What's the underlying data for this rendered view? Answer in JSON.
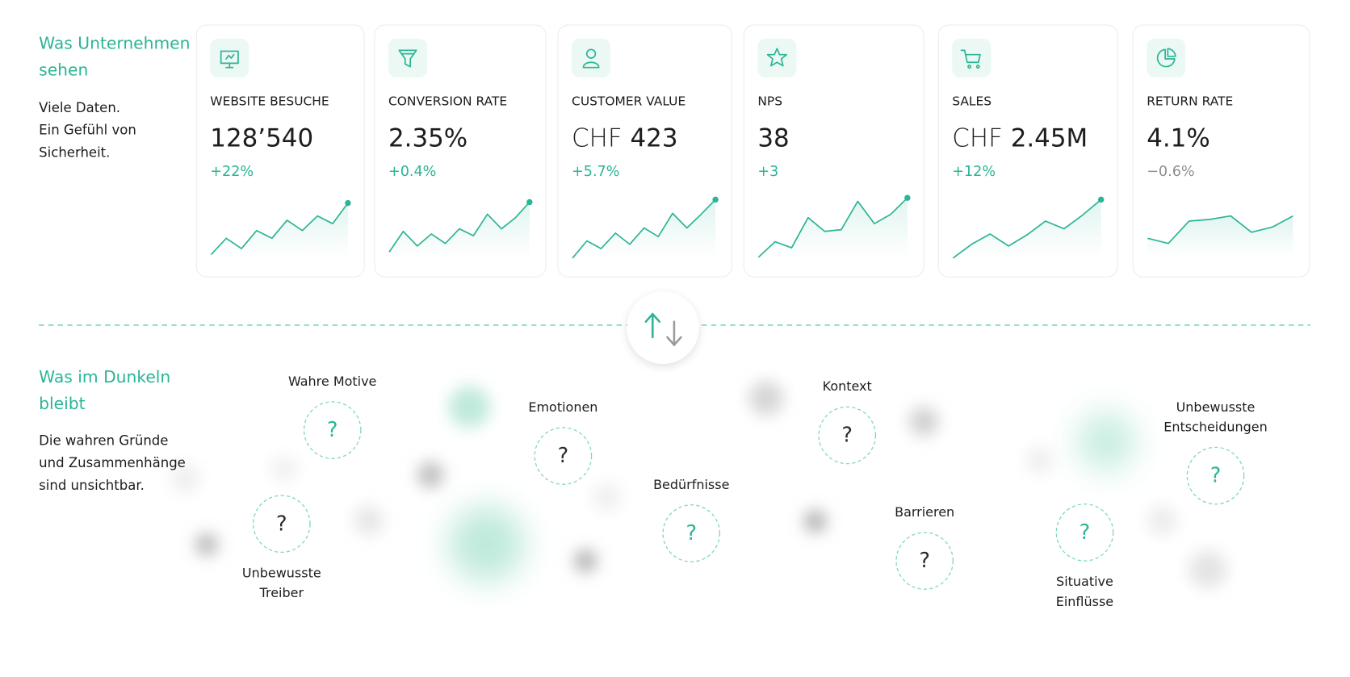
{
  "top": {
    "title": "Was Unternehmen sehen",
    "lines": [
      "Viele Daten.",
      "Ein Gefühl von",
      "Sicherheit."
    ]
  },
  "cards": [
    {
      "label": "WEBSITE BESUCHE",
      "value": "128’540",
      "change": "+22%",
      "change_color": "#2bb596",
      "sparkline": [
        4,
        23,
        11,
        32,
        23,
        44,
        32,
        49,
        40,
        64
      ],
      "end_dot": true
    },
    {
      "label": "CONVERSION RATE",
      "value": "2.35%",
      "change": "+0.4%",
      "change_color": "#2bb596",
      "sparkline": [
        7,
        31,
        14,
        28,
        17,
        34,
        26,
        51,
        34,
        47,
        65
      ],
      "end_dot": true
    },
    {
      "label": "CUSTOMER VALUE",
      "prefix": "CHF",
      "value": "423",
      "change": "+5.7%",
      "change_color": "#2bb596",
      "sparkline": [
        0,
        20,
        11,
        29,
        16,
        35,
        25,
        52,
        35,
        51,
        68
      ],
      "end_dot": true
    },
    {
      "label": "NPS",
      "value": "38",
      "change": "+3",
      "change_color": "#2bb596",
      "sparkline": [
        1,
        19,
        12,
        47,
        31,
        33,
        66,
        40,
        51,
        70
      ],
      "end_dot": true
    },
    {
      "label": "SALES",
      "prefix": "CHF",
      "value": "2.45M",
      "change": "+12%",
      "change_color": "#2bb596",
      "sparkline": [
        0,
        16,
        28,
        14,
        27,
        43,
        34,
        50,
        68
      ],
      "end_dot": true
    },
    {
      "label": "RETURN RATE",
      "value": "4.1%",
      "change": "−0.6%",
      "change_color": "#8f8f8f",
      "sparkline": [
        23,
        17,
        43,
        45,
        49,
        30,
        36,
        49
      ],
      "end_dot": false
    }
  ],
  "bottom": {
    "title": "Was im Dunkeln bleibt",
    "lines": [
      "Die wahren Gründe",
      "und Zusammenhänge",
      "sind unsichtbar."
    ]
  },
  "nodes": [
    {
      "label": [
        "Wahre Motive"
      ],
      "symbol": "?",
      "symbol_color": "#2bb596"
    },
    {
      "label": [
        "Unbewusste",
        "Treiber"
      ],
      "symbol": "?",
      "symbol_color": "#2a2a2a"
    },
    {
      "label": [
        "Emotionen"
      ],
      "symbol": "?",
      "symbol_color": "#2a2a2a"
    },
    {
      "label": [
        "Bedürfnisse"
      ],
      "symbol": "?",
      "symbol_color": "#2bb596"
    },
    {
      "label": [
        "Kontext"
      ],
      "symbol": "?",
      "symbol_color": "#2a2a2a"
    },
    {
      "label": [
        "Barrieren"
      ],
      "symbol": "?",
      "symbol_color": "#2a2a2a"
    },
    {
      "label": [
        "Situative",
        "Einflüsse"
      ],
      "symbol": "?",
      "symbol_color": "#2bb596"
    },
    {
      "label": [
        "Unbewusste",
        "Entscheidungen"
      ],
      "symbol": "?",
      "symbol_color": "#2bb596"
    }
  ]
}
